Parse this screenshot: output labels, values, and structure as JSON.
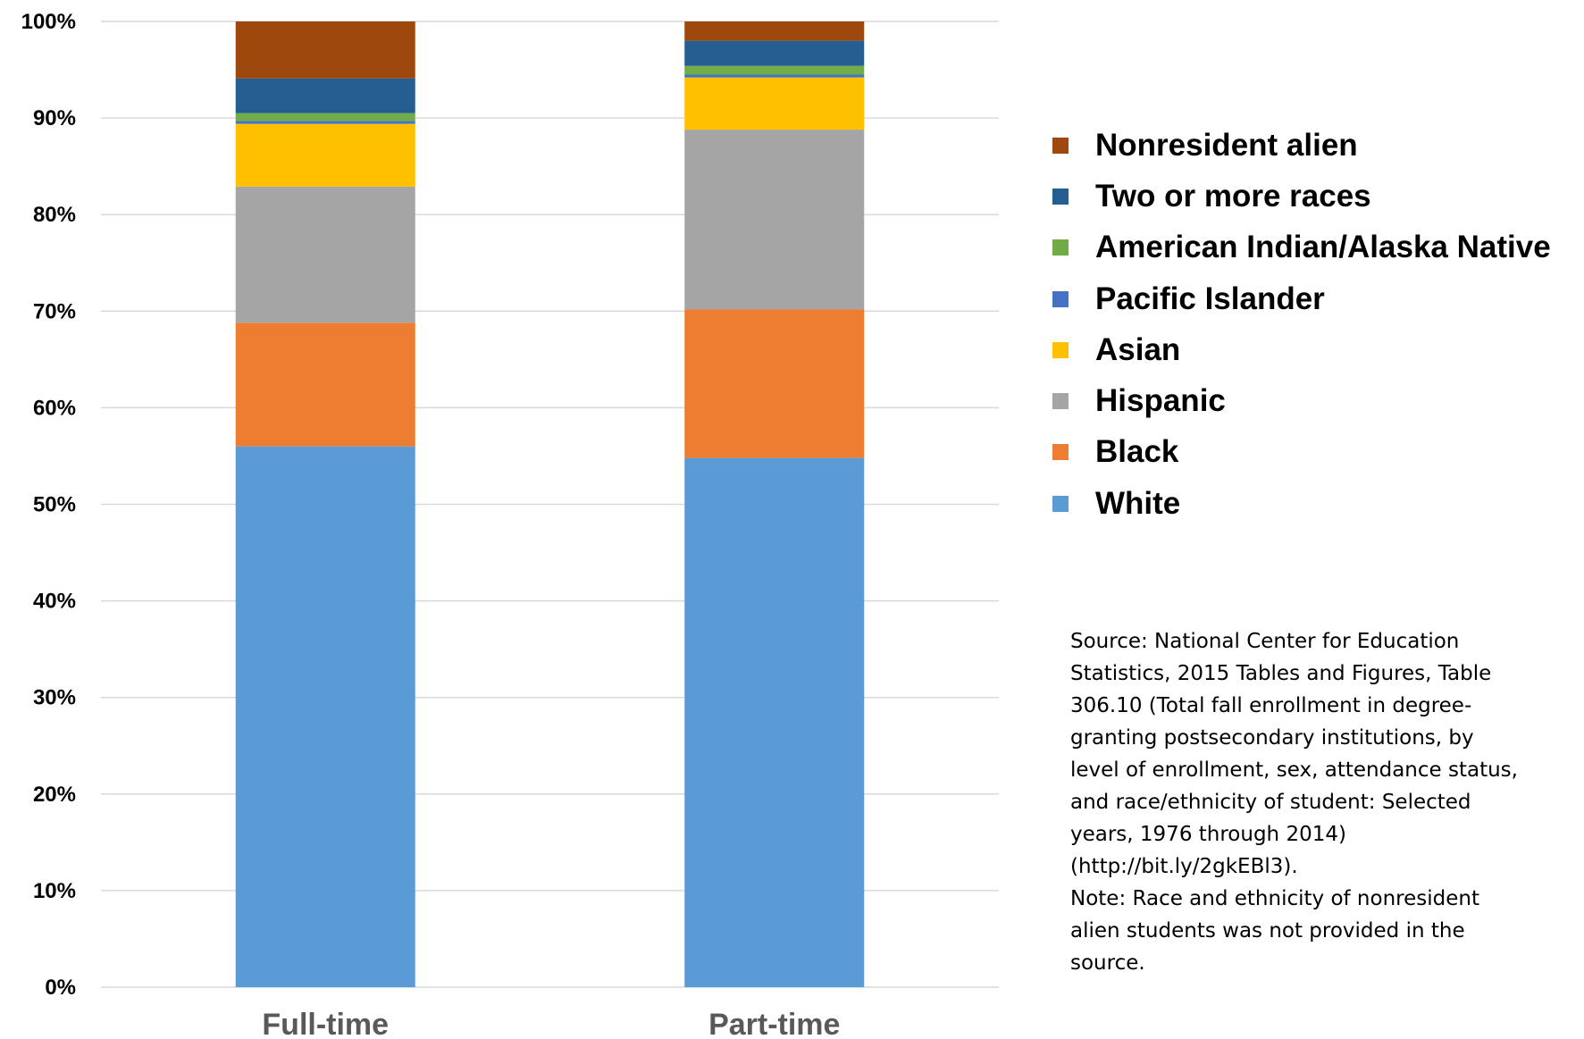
{
  "chart_data": {
    "type": "bar",
    "stacked": true,
    "categories": [
      "Full-time",
      "Part-time"
    ],
    "series": [
      {
        "name": "White",
        "color": "#5B9BD5",
        "values": [
          56.0,
          54.8
        ]
      },
      {
        "name": "Black",
        "color": "#ED7D31",
        "values": [
          12.8,
          15.4
        ]
      },
      {
        "name": "Hispanic",
        "color": "#A5A5A5",
        "values": [
          14.1,
          18.6
        ]
      },
      {
        "name": "Asian",
        "color": "#FFC000",
        "values": [
          6.5,
          5.4
        ]
      },
      {
        "name": "Pacific Islander",
        "color": "#4472C4",
        "values": [
          0.3,
          0.3
        ]
      },
      {
        "name": "American Indian/Alaska Native",
        "color": "#70AD47",
        "values": [
          0.8,
          0.9
        ]
      },
      {
        "name": "Two or more races",
        "color": "#255E91",
        "values": [
          3.6,
          2.6
        ]
      },
      {
        "name": "Nonresident alien",
        "color": "#9E480E",
        "values": [
          5.9,
          2.0
        ]
      }
    ],
    "ylim": [
      0,
      100
    ],
    "yticks": [
      "0%",
      "10%",
      "20%",
      "30%",
      "40%",
      "50%",
      "60%",
      "70%",
      "80%",
      "90%",
      "100%"
    ],
    "grid": true,
    "legend_position": "right",
    "legend_order": [
      "Nonresident alien",
      "Two or more races",
      "American Indian/Alaska Native",
      "Pacific Islander",
      "Asian",
      "Hispanic",
      "Black",
      "White"
    ],
    "xlabel": "",
    "ylabel": ""
  },
  "source_note": {
    "lines": [
      "Source: National Center for Education",
      "Statistics, 2015 Tables and Figures, Table",
      "306.10 (Total fall enrollment in degree-",
      "granting postsecondary institutions, by",
      "level of enrollment, sex, attendance status,",
      "and race/ethnicity of student: Selected",
      "years, 1976 through 2014)",
      "(http://bit.ly/2gkEBl3).",
      "Note: Race and ethnicity of nonresident",
      "alien students was not provided in the",
      "source."
    ]
  }
}
